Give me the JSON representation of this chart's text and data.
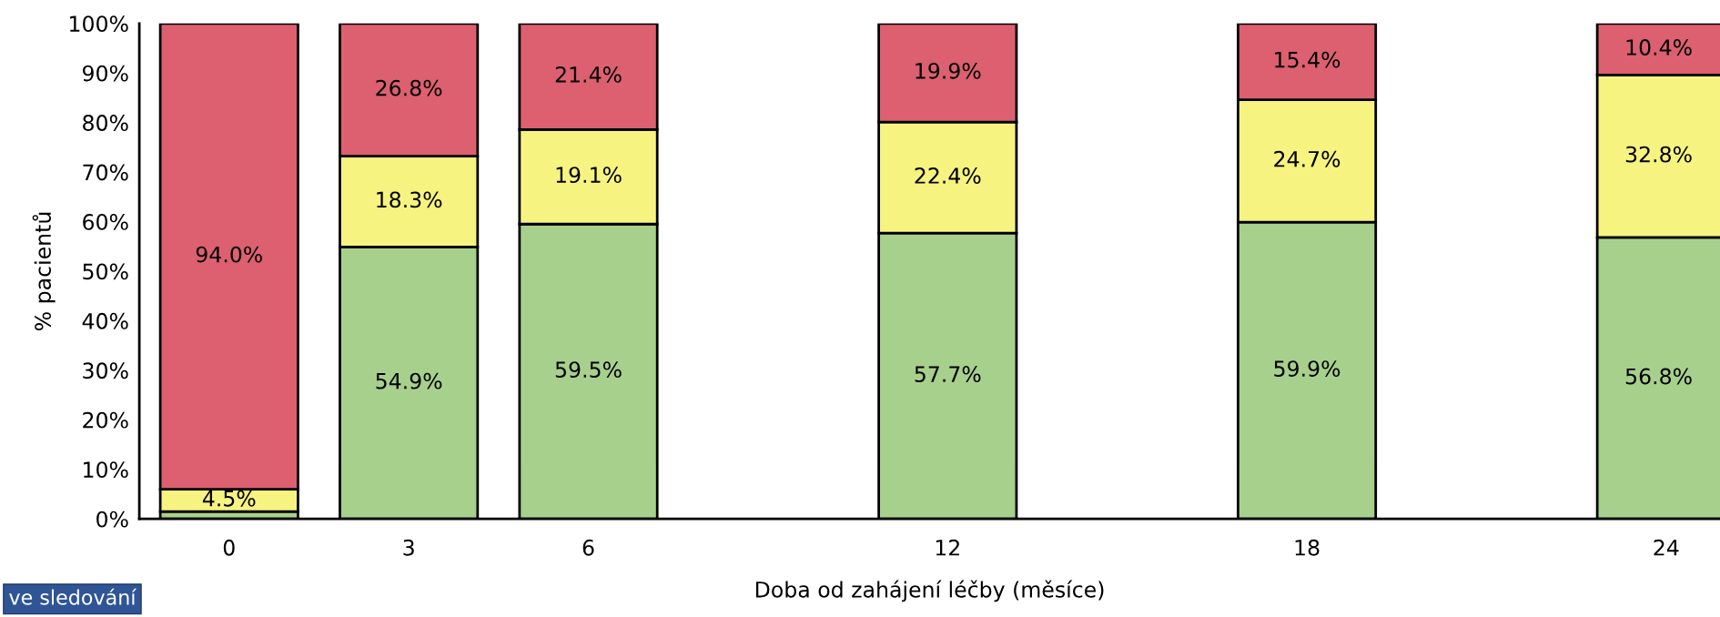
{
  "chart_data": {
    "type": "bar",
    "stacked": true,
    "x": [
      0,
      3,
      6,
      12,
      18,
      24
    ],
    "xlabel": "Doba od zahájení léčby (měsíce)",
    "ylabel": "% pacientů",
    "xlim": [
      -1.5,
      24.9
    ],
    "xticks": [
      0,
      3,
      6,
      12,
      18,
      24
    ],
    "ylim": [
      0,
      100
    ],
    "yticks": [
      {
        "value": 0,
        "label": "0%"
      },
      {
        "value": 10,
        "label": "10%"
      },
      {
        "value": 20,
        "label": "20%"
      },
      {
        "value": 30,
        "label": "30%"
      },
      {
        "value": 40,
        "label": "40%"
      },
      {
        "value": 50,
        "label": "50%"
      },
      {
        "value": 60,
        "label": "60%"
      },
      {
        "value": 70,
        "label": "70%"
      },
      {
        "value": 80,
        "label": "80%"
      },
      {
        "value": 90,
        "label": "90%"
      },
      {
        "value": 100,
        "label": "100%"
      }
    ],
    "grid": false,
    "legend": false,
    "annotations": [
      "ve sledování"
    ],
    "series": [
      {
        "color": "#a8d08d",
        "values": [
          1.5,
          54.9,
          59.5,
          57.7,
          59.9,
          56.8
        ],
        "value_labels": [
          null,
          "54.9%",
          "59.5%",
          "57.7%",
          "59.9%",
          "56.8%"
        ]
      },
      {
        "color": "#f7f380",
        "values": [
          4.5,
          18.3,
          19.1,
          22.4,
          24.7,
          32.8
        ],
        "value_labels": [
          "4.5%",
          "18.3%",
          "19.1%",
          "22.4%",
          "24.7%",
          "32.8%"
        ]
      },
      {
        "color": "#dc6070",
        "values": [
          94.0,
          26.8,
          21.4,
          19.9,
          15.4,
          10.4
        ],
        "value_labels": [
          "94.0%",
          "26.8%",
          "21.4%",
          "19.9%",
          "15.4%",
          "10.4%"
        ]
      }
    ]
  }
}
